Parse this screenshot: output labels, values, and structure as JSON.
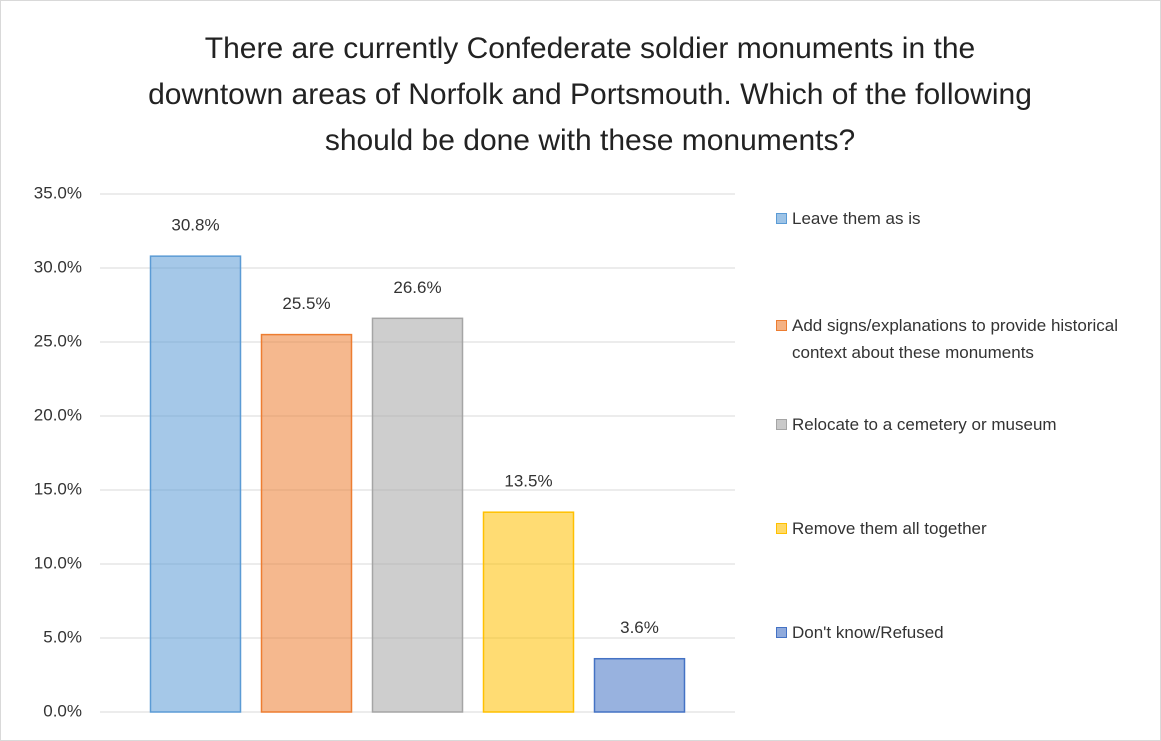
{
  "chart_data": {
    "type": "bar",
    "title": "There are currently Confederate soldier monuments in the downtown areas of Norfolk and Portsmouth. Which of the following should be done with these monuments?",
    "series": [
      {
        "name": "Leave them as is",
        "color": "#5b9bd5",
        "values": [
          30.8
        ],
        "value_labels": [
          "30.8%"
        ]
      },
      {
        "name": "Add signs/explanations to provide historical context about these monuments",
        "color": "#ed7d31",
        "values": [
          25.5
        ],
        "value_labels": [
          "25.5%"
        ]
      },
      {
        "name": "Relocate to a cemetery or museum",
        "color": "#a5a5a5",
        "values": [
          26.6
        ],
        "value_labels": [
          "26.6%"
        ]
      },
      {
        "name": "Remove them all together",
        "color": "#ffc000",
        "values": [
          13.5
        ],
        "value_labels": [
          "13.5%"
        ]
      },
      {
        "name": "Don't know/Refused",
        "color": "#4472c4",
        "values": [
          3.6
        ],
        "value_labels": [
          "3.6%"
        ]
      }
    ],
    "ylim": [
      0,
      35
    ],
    "yticks": [
      {
        "value": 0,
        "label": "0.0%"
      },
      {
        "value": 5,
        "label": "5.0%"
      },
      {
        "value": 10,
        "label": "10.0%"
      },
      {
        "value": 15,
        "label": "15.0%"
      },
      {
        "value": 20,
        "label": "20.0%"
      },
      {
        "value": 25,
        "label": "25.0%"
      },
      {
        "value": 30,
        "label": "30.0%"
      },
      {
        "value": 35,
        "label": "35.0%"
      }
    ],
    "grid": true,
    "legend": "right"
  }
}
